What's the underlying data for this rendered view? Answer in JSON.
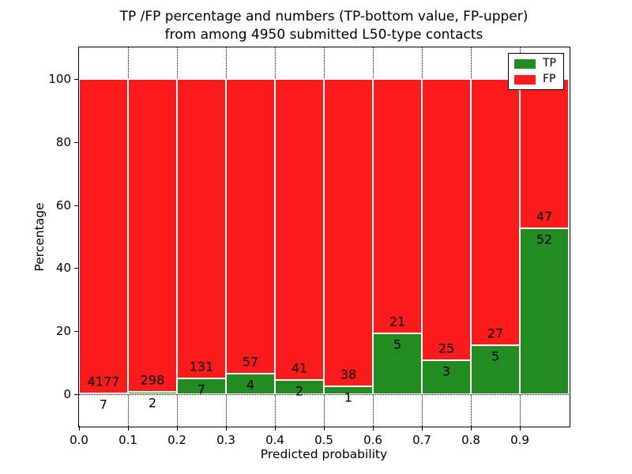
{
  "title": {
    "line1": "TP /FP percentage and numbers (TP-bottom value, FP-upper)",
    "line2": "from among 4950 submitted L50-type contacts"
  },
  "chart_data": {
    "type": "bar",
    "stacked": true,
    "normalized": "each bin scaled to 100%",
    "title": "TP /FP percentage and numbers (TP-bottom value, FP-upper) from among 4950 submitted L50-type contacts",
    "xlabel": "Predicted probability",
    "ylabel": "Percentage",
    "xlim": [
      0.0,
      1.0
    ],
    "ylim": [
      -10,
      110
    ],
    "xticks": [
      "0.0",
      "0.1",
      "0.2",
      "0.3",
      "0.4",
      "0.5",
      "0.6",
      "0.7",
      "0.8",
      "0.9"
    ],
    "yticks": [
      "0",
      "20",
      "40",
      "60",
      "80",
      "100"
    ],
    "grid": "dotted black, x at 0.1 steps, y at 20 steps",
    "legend_position": "upper right",
    "total_contacts": 4950,
    "bin_width": 0.1,
    "series": [
      {
        "name": "TP",
        "color": "#228b22",
        "values": [
          7,
          2,
          7,
          4,
          2,
          1,
          5,
          3,
          5,
          52
        ]
      },
      {
        "name": "FP",
        "color": "#fb1b1b",
        "values": [
          4177,
          298,
          131,
          57,
          41,
          38,
          21,
          25,
          27,
          47
        ]
      }
    ],
    "bins": [
      {
        "range": "0.0-0.1",
        "tp": 7,
        "fp": 4177
      },
      {
        "range": "0.1-0.2",
        "tp": 2,
        "fp": 298
      },
      {
        "range": "0.2-0.3",
        "tp": 7,
        "fp": 131
      },
      {
        "range": "0.3-0.4",
        "tp": 4,
        "fp": 57
      },
      {
        "range": "0.4-0.5",
        "tp": 2,
        "fp": 41
      },
      {
        "range": "0.5-0.6",
        "tp": 1,
        "fp": 38
      },
      {
        "range": "0.6-0.7",
        "tp": 5,
        "fp": 21
      },
      {
        "range": "0.7-0.8",
        "tp": 3,
        "fp": 25
      },
      {
        "range": "0.8-0.9",
        "tp": 5,
        "fp": 27
      },
      {
        "range": "0.9-1.0",
        "tp": 52,
        "fp": 47
      }
    ],
    "colors": {
      "tp_green": "#228b22",
      "fp_red": "#fb1b1b",
      "bar_edge": "#ffffff",
      "axis": "#000000"
    }
  }
}
